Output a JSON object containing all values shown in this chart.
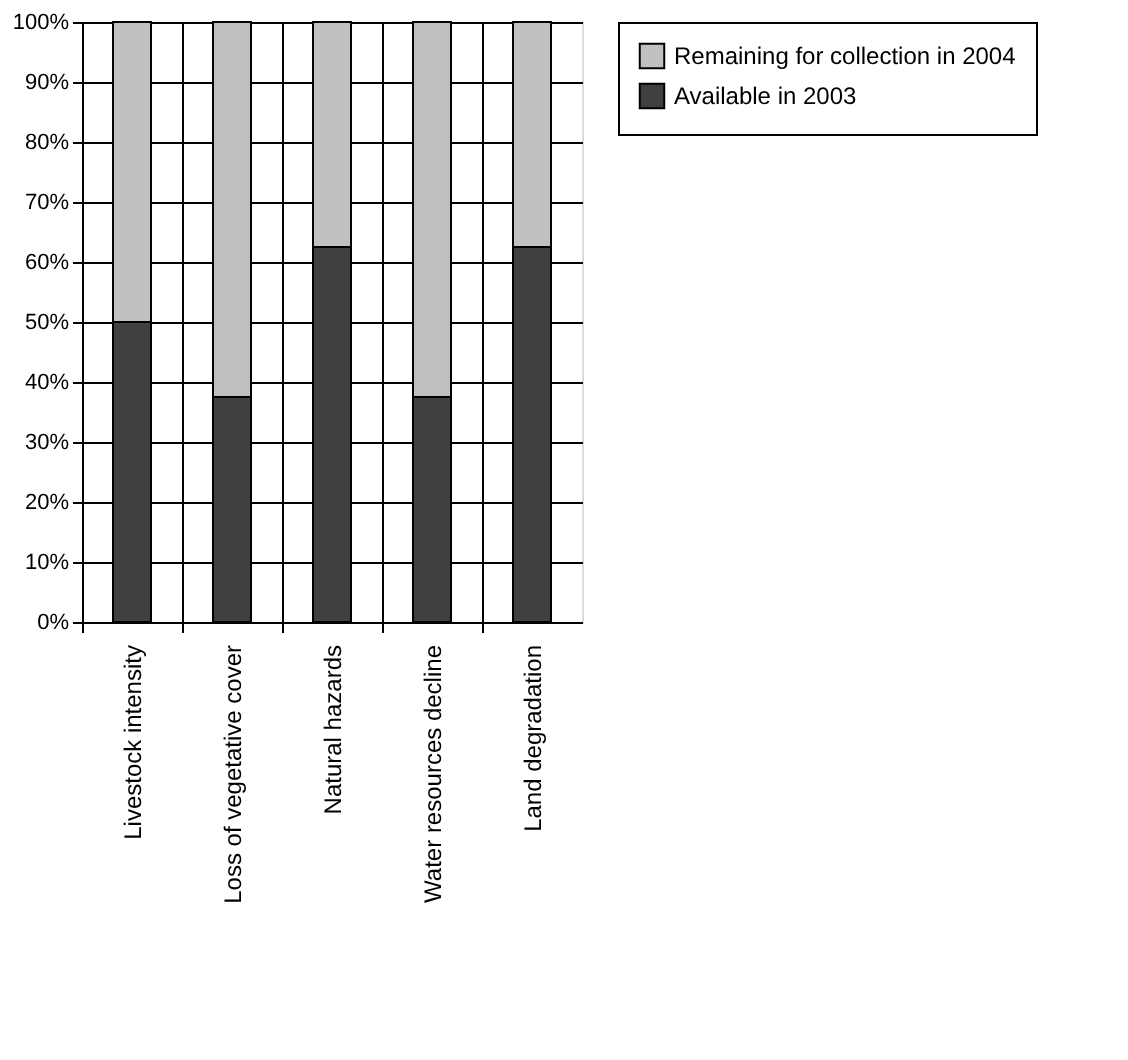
{
  "chart_data": {
    "type": "bar",
    "stacked": true,
    "categories": [
      "Livestock intensity",
      "Loss of vegetative cover",
      "Natural hazards",
      "Water resources decline",
      "Land degradation"
    ],
    "series": [
      {
        "name": "Available in 2003",
        "color": "#404040",
        "values": [
          50,
          37.5,
          62.5,
          37.5,
          62.5
        ]
      },
      {
        "name": "Remaining for collection in 2004",
        "color": "#c0c0c0",
        "values": [
          50,
          62.5,
          37.5,
          62.5,
          37.5
        ]
      }
    ],
    "ylim": [
      0,
      100
    ],
    "yticks": [
      {
        "value": 0,
        "label": "0%"
      },
      {
        "value": 10,
        "label": "10%"
      },
      {
        "value": 20,
        "label": "20%"
      },
      {
        "value": 30,
        "label": "30%"
      },
      {
        "value": 40,
        "label": "40%"
      },
      {
        "value": 50,
        "label": "50%"
      },
      {
        "value": 60,
        "label": "60%"
      },
      {
        "value": 70,
        "label": "70%"
      },
      {
        "value": 80,
        "label": "80%"
      },
      {
        "value": 90,
        "label": "90%"
      },
      {
        "value": 100,
        "label": "100%"
      }
    ],
    "grid": true,
    "legend": "right"
  }
}
